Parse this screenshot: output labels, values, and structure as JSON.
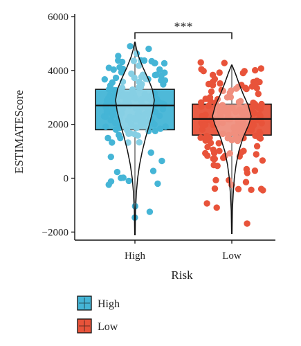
{
  "chart_data": {
    "type": "violin-box-jitter",
    "title": "",
    "xlabel": "Risk",
    "ylabel": "ESTIMATEScore",
    "ylim": [
      -2300,
      6000
    ],
    "yticks": [
      -2000,
      0,
      2000,
      4000,
      6000
    ],
    "ytick_labels": [
      "−2000",
      "0",
      "2000",
      "4000",
      "6000"
    ],
    "categories": [
      "High",
      "Low"
    ],
    "significance": {
      "groups": [
        "High",
        "Low"
      ],
      "label": "***",
      "y": 5400
    },
    "legend": {
      "position": "bottom-left",
      "entries": [
        {
          "label": "High",
          "color": "#45B5D6"
        },
        {
          "label": "Low",
          "color": "#E8533A"
        }
      ]
    },
    "series": [
      {
        "name": "High",
        "color": "#45B5D6",
        "box": {
          "min": -2100,
          "q1": 1800,
          "median": 2700,
          "q3": 3300,
          "max": 5050
        },
        "violin_width": [
          [
            -2100,
            0.01
          ],
          [
            -1200,
            0.03
          ],
          [
            -500,
            0.08
          ],
          [
            0,
            0.14
          ],
          [
            500,
            0.24
          ],
          [
            1000,
            0.38
          ],
          [
            1500,
            0.55
          ],
          [
            2000,
            0.75
          ],
          [
            2500,
            0.92
          ],
          [
            2900,
            1.0
          ],
          [
            3300,
            0.9
          ],
          [
            3700,
            0.68
          ],
          [
            4100,
            0.42
          ],
          [
            4500,
            0.2
          ],
          [
            4800,
            0.08
          ],
          [
            5050,
            0.01
          ]
        ],
        "points": [
          {
            "n": 55,
            "mean": 2700,
            "sd": 500,
            "min": 1300,
            "max": 4200
          },
          {
            "n": 90,
            "mean": 2700,
            "sd": 800,
            "min": -800,
            "max": 4900
          },
          {
            "n": 20,
            "mean": 800,
            "sd": 900,
            "min": -2100,
            "max": 2000
          },
          {
            "n": 20,
            "mean": 4000,
            "sd": 400,
            "min": 3000,
            "max": 4900
          }
        ]
      },
      {
        "name": "Low",
        "color": "#E8533A",
        "box": {
          "min": -2050,
          "q1": 1600,
          "median": 2200,
          "q3": 2750,
          "max": 4200
        },
        "violin_width": [
          [
            -2050,
            0.01
          ],
          [
            -1200,
            0.03
          ],
          [
            -600,
            0.07
          ],
          [
            0,
            0.13
          ],
          [
            500,
            0.22
          ],
          [
            1000,
            0.36
          ],
          [
            1500,
            0.58
          ],
          [
            2000,
            0.88
          ],
          [
            2300,
            1.0
          ],
          [
            2700,
            0.85
          ],
          [
            3100,
            0.6
          ],
          [
            3500,
            0.38
          ],
          [
            3900,
            0.18
          ],
          [
            4200,
            0.01
          ]
        ],
        "points": [
          {
            "n": 55,
            "mean": 2200,
            "sd": 500,
            "min": 900,
            "max": 3600
          },
          {
            "n": 85,
            "mean": 2200,
            "sd": 900,
            "min": -1200,
            "max": 4300
          },
          {
            "n": 25,
            "mean": 300,
            "sd": 1000,
            "min": -2100,
            "max": 1500
          },
          {
            "n": 15,
            "mean": 3700,
            "sd": 350,
            "min": 3000,
            "max": 4300
          }
        ]
      }
    ]
  }
}
